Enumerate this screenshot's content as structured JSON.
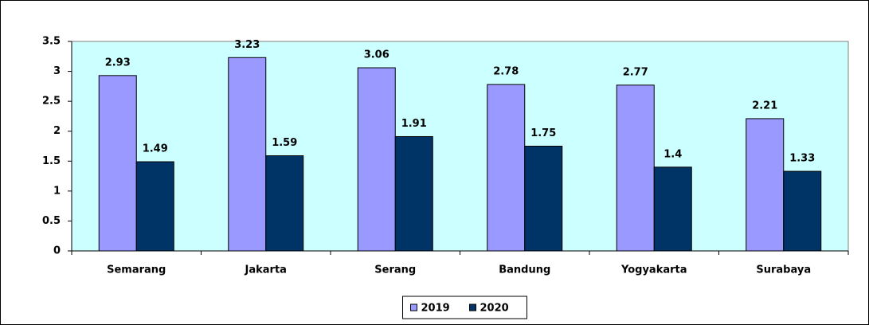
{
  "chart_data": {
    "type": "bar",
    "categories": [
      "Semarang",
      "Jakarta",
      "Serang",
      "Bandung",
      "Yogyakarta",
      "Surabaya"
    ],
    "series": [
      {
        "name": "2019",
        "color": "#9999ff",
        "values": [
          2.93,
          3.23,
          3.06,
          2.78,
          2.77,
          2.21
        ]
      },
      {
        "name": "2020",
        "color": "#003366",
        "values": [
          1.49,
          1.59,
          1.91,
          1.75,
          1.4,
          1.33
        ]
      }
    ],
    "ylim": [
      0,
      3.5
    ],
    "yticks": [
      0,
      0.5,
      1,
      1.5,
      2,
      2.5,
      3,
      3.5
    ],
    "legend": "bottom"
  }
}
